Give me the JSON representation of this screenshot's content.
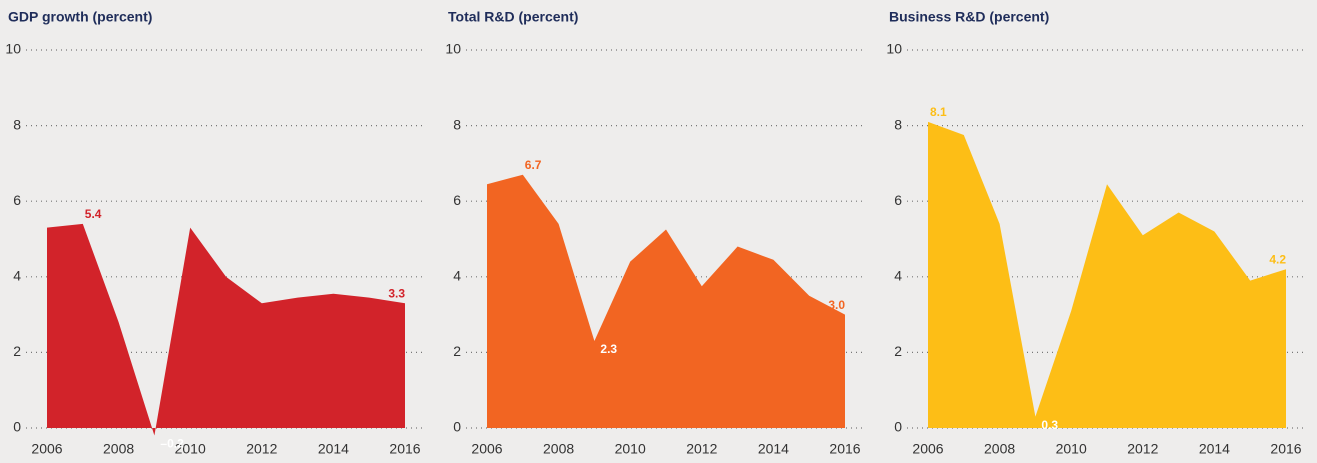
{
  "chart_data": [
    {
      "type": "area",
      "title": "GDP growth (percent)",
      "color": "#d2232a",
      "x": [
        2006,
        2007,
        2008,
        2009,
        2010,
        2011,
        2012,
        2013,
        2014,
        2015,
        2016
      ],
      "values": [
        5.3,
        5.4,
        2.8,
        -0.2,
        5.3,
        4.0,
        3.3,
        3.45,
        3.55,
        3.45,
        3.3
      ],
      "value_labels": [
        null,
        "5.4",
        null,
        "–0.2",
        null,
        null,
        null,
        null,
        null,
        null,
        "3.3"
      ],
      "xlim": [
        2006,
        2016
      ],
      "xticks": [
        2006,
        2008,
        2010,
        2012,
        2014,
        2016
      ],
      "ylim": [
        0,
        10
      ],
      "yticks": [
        0,
        2,
        4,
        6,
        8,
        10
      ],
      "grid": true
    },
    {
      "type": "area",
      "title": "Total R&D (percent)",
      "color": "#f26522",
      "x": [
        2006,
        2007,
        2008,
        2009,
        2010,
        2011,
        2012,
        2013,
        2014,
        2015,
        2016
      ],
      "values": [
        6.45,
        6.7,
        5.4,
        2.3,
        4.4,
        5.25,
        3.75,
        4.8,
        4.45,
        3.5,
        3.0
      ],
      "value_labels": [
        null,
        "6.7",
        null,
        "2.3",
        null,
        null,
        null,
        null,
        null,
        null,
        "3.0"
      ],
      "xlim": [
        2006,
        2016
      ],
      "xticks": [
        2006,
        2008,
        2010,
        2012,
        2014,
        2016
      ],
      "ylim": [
        0,
        10
      ],
      "yticks": [
        0,
        2,
        4,
        6,
        8,
        10
      ],
      "grid": true
    },
    {
      "type": "area",
      "title": "Business R&D (percent)",
      "color": "#fdbe16",
      "x": [
        2006,
        2007,
        2008,
        2009,
        2010,
        2011,
        2012,
        2013,
        2014,
        2015,
        2016
      ],
      "values": [
        8.1,
        7.75,
        5.4,
        0.3,
        3.1,
        6.45,
        5.1,
        5.7,
        5.2,
        3.9,
        4.2
      ],
      "value_labels": [
        "8.1",
        null,
        null,
        "0.3",
        null,
        null,
        null,
        null,
        null,
        null,
        "4.2"
      ],
      "xlim": [
        2006,
        2016
      ],
      "xticks": [
        2006,
        2008,
        2010,
        2012,
        2014,
        2016
      ],
      "ylim": [
        0,
        10
      ],
      "yticks": [
        0,
        2,
        4,
        6,
        8,
        10
      ],
      "grid": true
    }
  ]
}
